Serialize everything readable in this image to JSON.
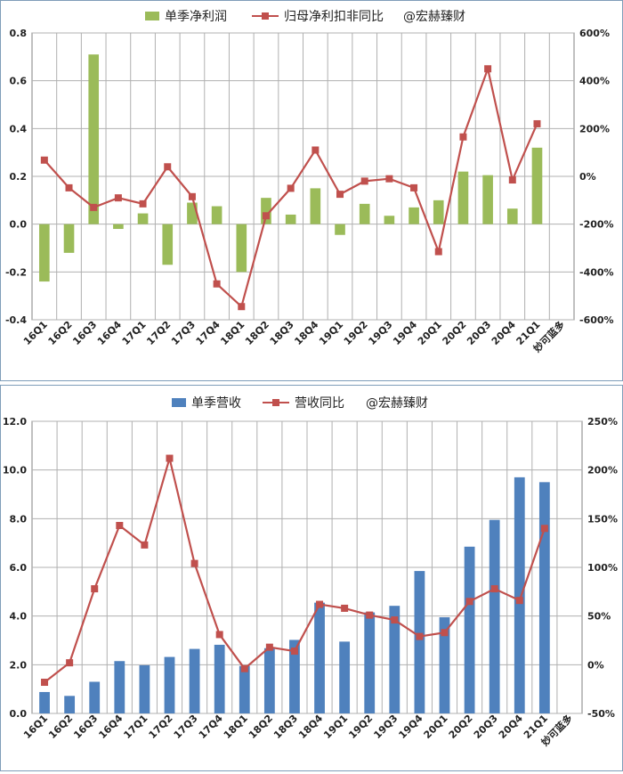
{
  "charts": [
    {
      "id": "top",
      "type": "bar+line",
      "legend": {
        "bar_label": "单季净利润",
        "line_label": "归母净利扣非同比",
        "watermark": "@宏赫臻财"
      },
      "categories": [
        "16Q1",
        "16Q2",
        "16Q3",
        "16Q4",
        "17Q1",
        "17Q2",
        "17Q3",
        "17Q4",
        "18Q1",
        "18Q2",
        "18Q3",
        "18Q4",
        "19Q1",
        "19Q2",
        "19Q3",
        "19Q4",
        "20Q1",
        "20Q2",
        "20Q3",
        "20Q4",
        "21Q1"
      ],
      "extra_category": "妙可蓝多",
      "bar_values": [
        -0.24,
        -0.12,
        0.71,
        -0.02,
        0.045,
        -0.17,
        0.09,
        0.075,
        -0.2,
        0.11,
        0.04,
        0.15,
        -0.045,
        0.085,
        0.035,
        0.07,
        0.1,
        0.22,
        0.205,
        0.065,
        0.32
      ],
      "line_values": [
        68,
        -48,
        -130,
        -90,
        -115,
        40,
        -85,
        -450,
        -545,
        -165,
        -50,
        110,
        -75,
        -20,
        -10,
        -48,
        -315,
        165,
        450,
        -15,
        220
      ],
      "y_left": {
        "min": -0.4,
        "max": 0.8,
        "ticks": [
          "-0.4",
          "-0.2",
          "0.0",
          "0.2",
          "0.4",
          "0.6",
          "0.8"
        ]
      },
      "y_right": {
        "min": -600,
        "max": 600,
        "ticks": [
          "-600%",
          "-400%",
          "-200%",
          "0%",
          "200%",
          "400%",
          "600%"
        ]
      },
      "colors": {
        "bar": "#9bbb59",
        "line": "#c0504d",
        "grid": "#b0b0b0"
      }
    },
    {
      "id": "bottom",
      "type": "bar+line",
      "legend": {
        "bar_label": "单季营收",
        "line_label": "营收同比",
        "watermark": "@宏赫臻财"
      },
      "categories": [
        "16Q1",
        "16Q2",
        "16Q3",
        "16Q4",
        "17Q1",
        "17Q2",
        "17Q3",
        "17Q4",
        "18Q1",
        "18Q2",
        "18Q3",
        "18Q4",
        "19Q1",
        "19Q2",
        "19Q3",
        "19Q4",
        "20Q1",
        "20Q2",
        "20Q3",
        "20Q4",
        "21Q1"
      ],
      "extra_category": "妙可蓝多",
      "bar_values": [
        0.88,
        0.72,
        1.3,
        2.15,
        1.98,
        2.32,
        2.65,
        2.82,
        1.95,
        2.68,
        3.02,
        4.55,
        2.95,
        4.15,
        4.42,
        5.85,
        3.95,
        6.85,
        7.95,
        9.7,
        9.5
      ],
      "line_values": [
        -18,
        2,
        78,
        143,
        123,
        212,
        104,
        31,
        -4,
        18,
        14,
        62,
        58,
        51,
        46,
        29,
        33,
        65,
        78,
        66,
        140
      ],
      "y_left": {
        "min": 0,
        "max": 12,
        "ticks": [
          "0.0",
          "2.0",
          "4.0",
          "6.0",
          "8.0",
          "10.0",
          "12.0"
        ]
      },
      "y_right": {
        "min": -50,
        "max": 250,
        "ticks": [
          "-50%",
          "0%",
          "50%",
          "100%",
          "150%",
          "200%",
          "250%"
        ]
      },
      "colors": {
        "bar": "#4f81bd",
        "line": "#c0504d",
        "grid": "#b0b0b0"
      }
    }
  ]
}
